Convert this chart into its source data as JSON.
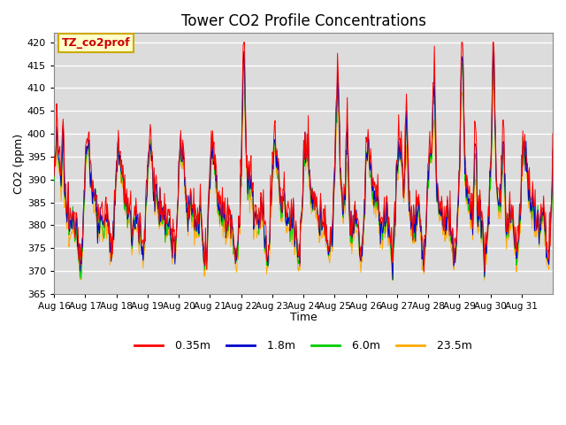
{
  "title": "Tower CO2 Profile Concentrations",
  "xlabel": "Time",
  "ylabel": "CO2 (ppm)",
  "annotation": "TZ_co2prof",
  "ylim": [
    365,
    422
  ],
  "yticks": [
    365,
    370,
    375,
    380,
    385,
    390,
    395,
    400,
    405,
    410,
    415,
    420
  ],
  "num_days": 16,
  "points_per_day": 48,
  "colors": {
    "0.35m": "#ff0000",
    "1.8m": "#0000cc",
    "6.0m": "#00cc00",
    "23.5m": "#ffaa00"
  },
  "background_color": "#dcdcdc",
  "x_tick_labels": [
    "Aug 16",
    "Aug 17",
    "Aug 18",
    "Aug 19",
    "Aug 20",
    "Aug 21",
    "Aug 22",
    "Aug 23",
    "Aug 24",
    "Aug 25",
    "Aug 26",
    "Aug 27",
    "Aug 28",
    "Aug 29",
    "Aug 30",
    "Aug 31"
  ],
  "annotation_bbox": {
    "facecolor": "#ffffcc",
    "edgecolor": "#ccaa00"
  }
}
